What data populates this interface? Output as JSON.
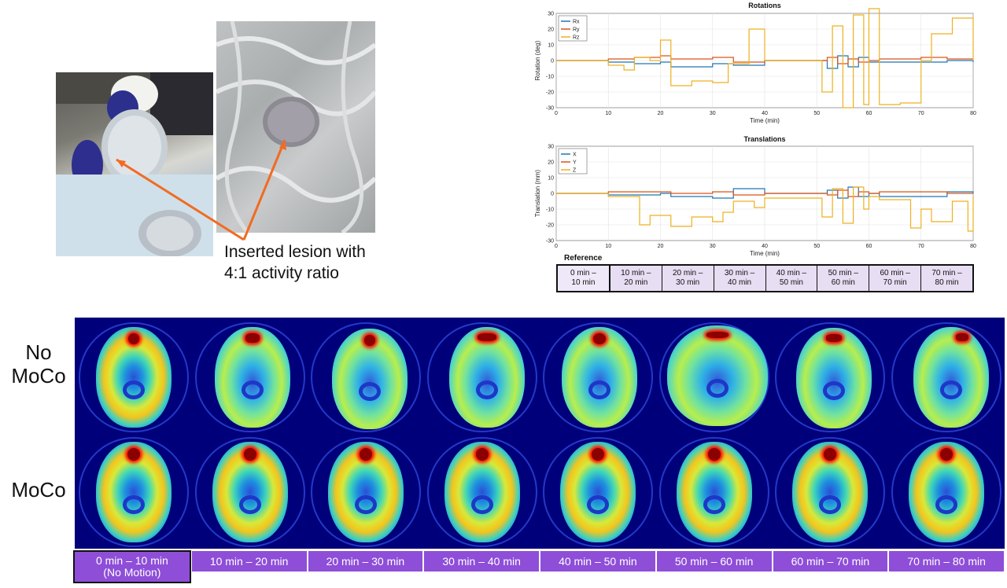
{
  "callout": "Inserted lesion with\n4:1 activity ratio",
  "rotations": {
    "title": "Rotations",
    "ylabel": "Rotation (deg)",
    "xlabel": "Time (min)",
    "legend": [
      "Rx",
      "Ry",
      "Rz"
    ],
    "colors": [
      "#1f77b4",
      "#d9541a",
      "#edb120"
    ]
  },
  "translations": {
    "title": "Translations",
    "ylabel": "Translation (mm)",
    "xlabel": "Time (min)",
    "legend": [
      "X",
      "Y",
      "Z"
    ],
    "colors": [
      "#1f77b4",
      "#d9541a",
      "#edb120"
    ]
  },
  "chart_data": [
    {
      "type": "line",
      "title": "Rotations",
      "xlabel": "Time (min)",
      "ylabel": "Rotation (deg)",
      "xlim": [
        0,
        80
      ],
      "ylim": [
        -30,
        30
      ],
      "xticks": [
        0,
        10,
        20,
        30,
        40,
        50,
        60,
        70,
        80
      ],
      "yticks": [
        30,
        20,
        10,
        0,
        -10,
        -20,
        -30
      ],
      "grid": true,
      "legend_position": "top-left",
      "series": [
        {
          "name": "Rx",
          "x": [
            0,
            10,
            15,
            20,
            22,
            30,
            34,
            40,
            50,
            52,
            54,
            56,
            58,
            60,
            62,
            70,
            75,
            80
          ],
          "y": [
            0,
            -1,
            -2,
            -1,
            -4,
            -2,
            -3,
            0,
            0,
            -5,
            3,
            -4,
            2,
            -1,
            -1,
            -1,
            0,
            -1
          ]
        },
        {
          "name": "Ry",
          "x": [
            0,
            10,
            15,
            20,
            22,
            30,
            34,
            40,
            50,
            52,
            54,
            56,
            58,
            60,
            62,
            70,
            75,
            80
          ],
          "y": [
            0,
            1,
            2,
            3,
            1,
            2,
            -1,
            0,
            0,
            2,
            -2,
            1,
            -1,
            0,
            1,
            2,
            1,
            1
          ]
        },
        {
          "name": "Rz",
          "x": [
            0,
            10,
            13,
            15,
            18,
            20,
            22,
            26,
            30,
            33,
            37,
            40,
            50,
            51,
            53,
            55,
            57,
            59,
            60,
            62,
            66,
            70,
            72,
            76,
            80
          ],
          "y": [
            0,
            -3,
            -6,
            2,
            0,
            13,
            -16,
            -13,
            -14,
            -2,
            20,
            0,
            0,
            -20,
            22,
            -30,
            29,
            -28,
            33,
            -28,
            -27,
            0,
            17,
            27,
            0
          ]
        }
      ]
    },
    {
      "type": "line",
      "title": "Translations",
      "xlabel": "Time (min)",
      "ylabel": "Translation (mm)",
      "xlim": [
        0,
        80
      ],
      "ylim": [
        -30,
        30
      ],
      "xticks": [
        0,
        10,
        20,
        30,
        40,
        50,
        60,
        70,
        80
      ],
      "yticks": [
        30,
        20,
        10,
        0,
        -10,
        -20,
        -30
      ],
      "grid": true,
      "legend_position": "top-left",
      "series": [
        {
          "name": "X",
          "x": [
            0,
            10,
            20,
            22,
            30,
            34,
            40,
            50,
            52,
            54,
            56,
            58,
            60,
            62,
            70,
            75,
            80
          ],
          "y": [
            0,
            -1,
            0,
            -2,
            -3,
            3,
            0,
            0,
            2,
            -3,
            4,
            -2,
            0,
            -2,
            -2,
            1,
            0
          ]
        },
        {
          "name": "Y",
          "x": [
            0,
            10,
            20,
            22,
            30,
            34,
            40,
            50,
            52,
            54,
            56,
            58,
            60,
            62,
            70,
            75,
            80
          ],
          "y": [
            0,
            1,
            1,
            0,
            1,
            -1,
            0,
            0,
            -1,
            2,
            -2,
            1,
            0,
            1,
            1,
            0,
            0
          ]
        },
        {
          "name": "Z",
          "x": [
            0,
            10,
            16,
            18,
            22,
            26,
            30,
            32,
            34,
            38,
            40,
            50,
            51,
            53,
            55,
            57,
            59,
            60,
            62,
            68,
            70,
            72,
            76,
            79,
            80
          ],
          "y": [
            0,
            -2,
            -20,
            -14,
            -21,
            -15,
            -18,
            -12,
            -5,
            -9,
            -3,
            -3,
            -15,
            3,
            -19,
            4,
            -10,
            -2,
            -4,
            -22,
            -10,
            -18,
            -5,
            -24,
            -2
          ]
        }
      ]
    }
  ],
  "reference": {
    "label": "Reference",
    "cells": [
      "0 min –\n10 min",
      "10 min –\n20 min",
      "20 min –\n30 min",
      "30 min –\n40 min",
      "40 min –\n50 min",
      "50 min –\n60 min",
      "60 min –\n70 min",
      "70 min –\n80 min"
    ]
  },
  "rows": {
    "nomoco": "No\nMoCo",
    "moco": "MoCo"
  },
  "time_labels": [
    "0 min – 10 min\n(No Motion)",
    "10 min – 20 min",
    "20 min – 30 min",
    "30 min – 40 min",
    "40 min – 50 min",
    "50 min – 60 min",
    "60 min – 70 min",
    "70 min – 80 min"
  ]
}
